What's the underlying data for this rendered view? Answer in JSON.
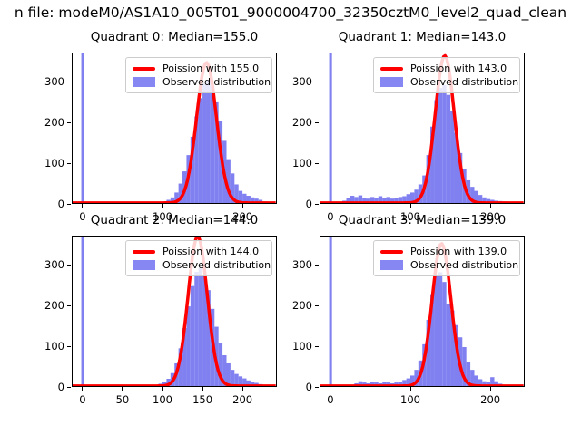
{
  "figure": {
    "suptitle": "n file: modeM0/AS1A10_005T01_9000004700_32350cztM0_level2_quad_clean",
    "suptitle_truncated": "true"
  },
  "colors": {
    "hist_fill": "#8080f0",
    "poisson_line": "#ff0000",
    "spine": "#000000",
    "legend_border": "#cccccc"
  },
  "axes": {
    "xlim": [
      -13.5,
      243
    ],
    "ylim": [
      0,
      372
    ]
  },
  "chart_data": [
    {
      "type": "bar",
      "quadrant": 0,
      "title": "Quadrant 0: Median=155.0",
      "median": 155.0,
      "legend": {
        "line_label": "Poission with 155.0",
        "patch_label": "Observed distribution"
      },
      "xticks": [
        0,
        100,
        200
      ],
      "yticks": [
        0,
        100,
        200,
        300
      ],
      "zero_spike": true,
      "bins": {
        "start": 85,
        "width": 5,
        "heights": [
          3,
          4,
          5,
          6,
          10,
          16,
          28,
          50,
          80,
          120,
          165,
          215,
          260,
          295,
          305,
          288,
          252,
          205,
          155,
          110,
          75,
          48,
          32,
          25,
          20,
          16,
          13,
          10,
          6,
          3
        ]
      },
      "poisson": {
        "lambda": 155.0,
        "peak": 345
      }
    },
    {
      "type": "bar",
      "quadrant": 1,
      "title": "Quadrant 1: Median=143.0",
      "median": 143.0,
      "legend": {
        "line_label": "Poission with 143.0",
        "patch_label": "Observed distribution"
      },
      "xticks": [
        0,
        100,
        200
      ],
      "yticks": [
        0,
        100,
        200,
        300
      ],
      "zero_spike": true,
      "bins": {
        "start": 10,
        "width": 5,
        "heights": [
          3,
          8,
          14,
          20,
          17,
          21,
          15,
          13,
          17,
          14,
          19,
          15,
          17,
          13,
          15,
          17,
          19,
          24,
          28,
          35,
          48,
          70,
          120,
          190,
          255,
          285,
          292,
          268,
          228,
          175,
          125,
          85,
          58,
          42,
          32,
          22,
          16,
          12,
          10,
          8,
          7,
          6,
          5,
          4,
          3
        ]
      },
      "poisson": {
        "lambda": 143.0,
        "peak": 362
      }
    },
    {
      "type": "bar",
      "quadrant": 2,
      "title": "Quadrant 2: Median=144.0",
      "median": 144.0,
      "legend": {
        "line_label": "Poission with 144.0",
        "patch_label": "Observed distribution"
      },
      "xticks": [
        0,
        50,
        100,
        150,
        200
      ],
      "yticks": [
        0,
        100,
        200,
        300
      ],
      "zero_spike": true,
      "bins": {
        "start": 85,
        "width": 5,
        "heights": [
          3,
          5,
          8,
          12,
          20,
          34,
          58,
          95,
          145,
          198,
          248,
          283,
          292,
          272,
          238,
          192,
          148,
          108,
          78,
          58,
          42,
          32,
          26,
          21,
          16,
          13,
          10,
          7,
          5,
          3
        ]
      },
      "poisson": {
        "lambda": 144.0,
        "peak": 368
      }
    },
    {
      "type": "bar",
      "quadrant": 3,
      "title": "Quadrant 3: Median=139.0",
      "median": 139.0,
      "legend": {
        "line_label": "Poission with 139.0",
        "patch_label": "Observed distribution"
      },
      "xticks": [
        0,
        100,
        200
      ],
      "yticks": [
        0,
        100,
        200,
        300
      ],
      "zero_spike": true,
      "bins": {
        "start": 25,
        "width": 5,
        "heights": [
          4,
          9,
          14,
          11,
          9,
          13,
          11,
          9,
          13,
          11,
          9,
          11,
          13,
          17,
          21,
          28,
          42,
          65,
          105,
          165,
          228,
          272,
          282,
          258,
          205,
          188,
          152,
          122,
          98,
          62,
          42,
          28,
          19,
          14,
          12,
          24,
          14,
          8,
          5,
          4,
          3
        ]
      },
      "poisson": {
        "lambda": 139.0,
        "peak": 350
      }
    }
  ]
}
